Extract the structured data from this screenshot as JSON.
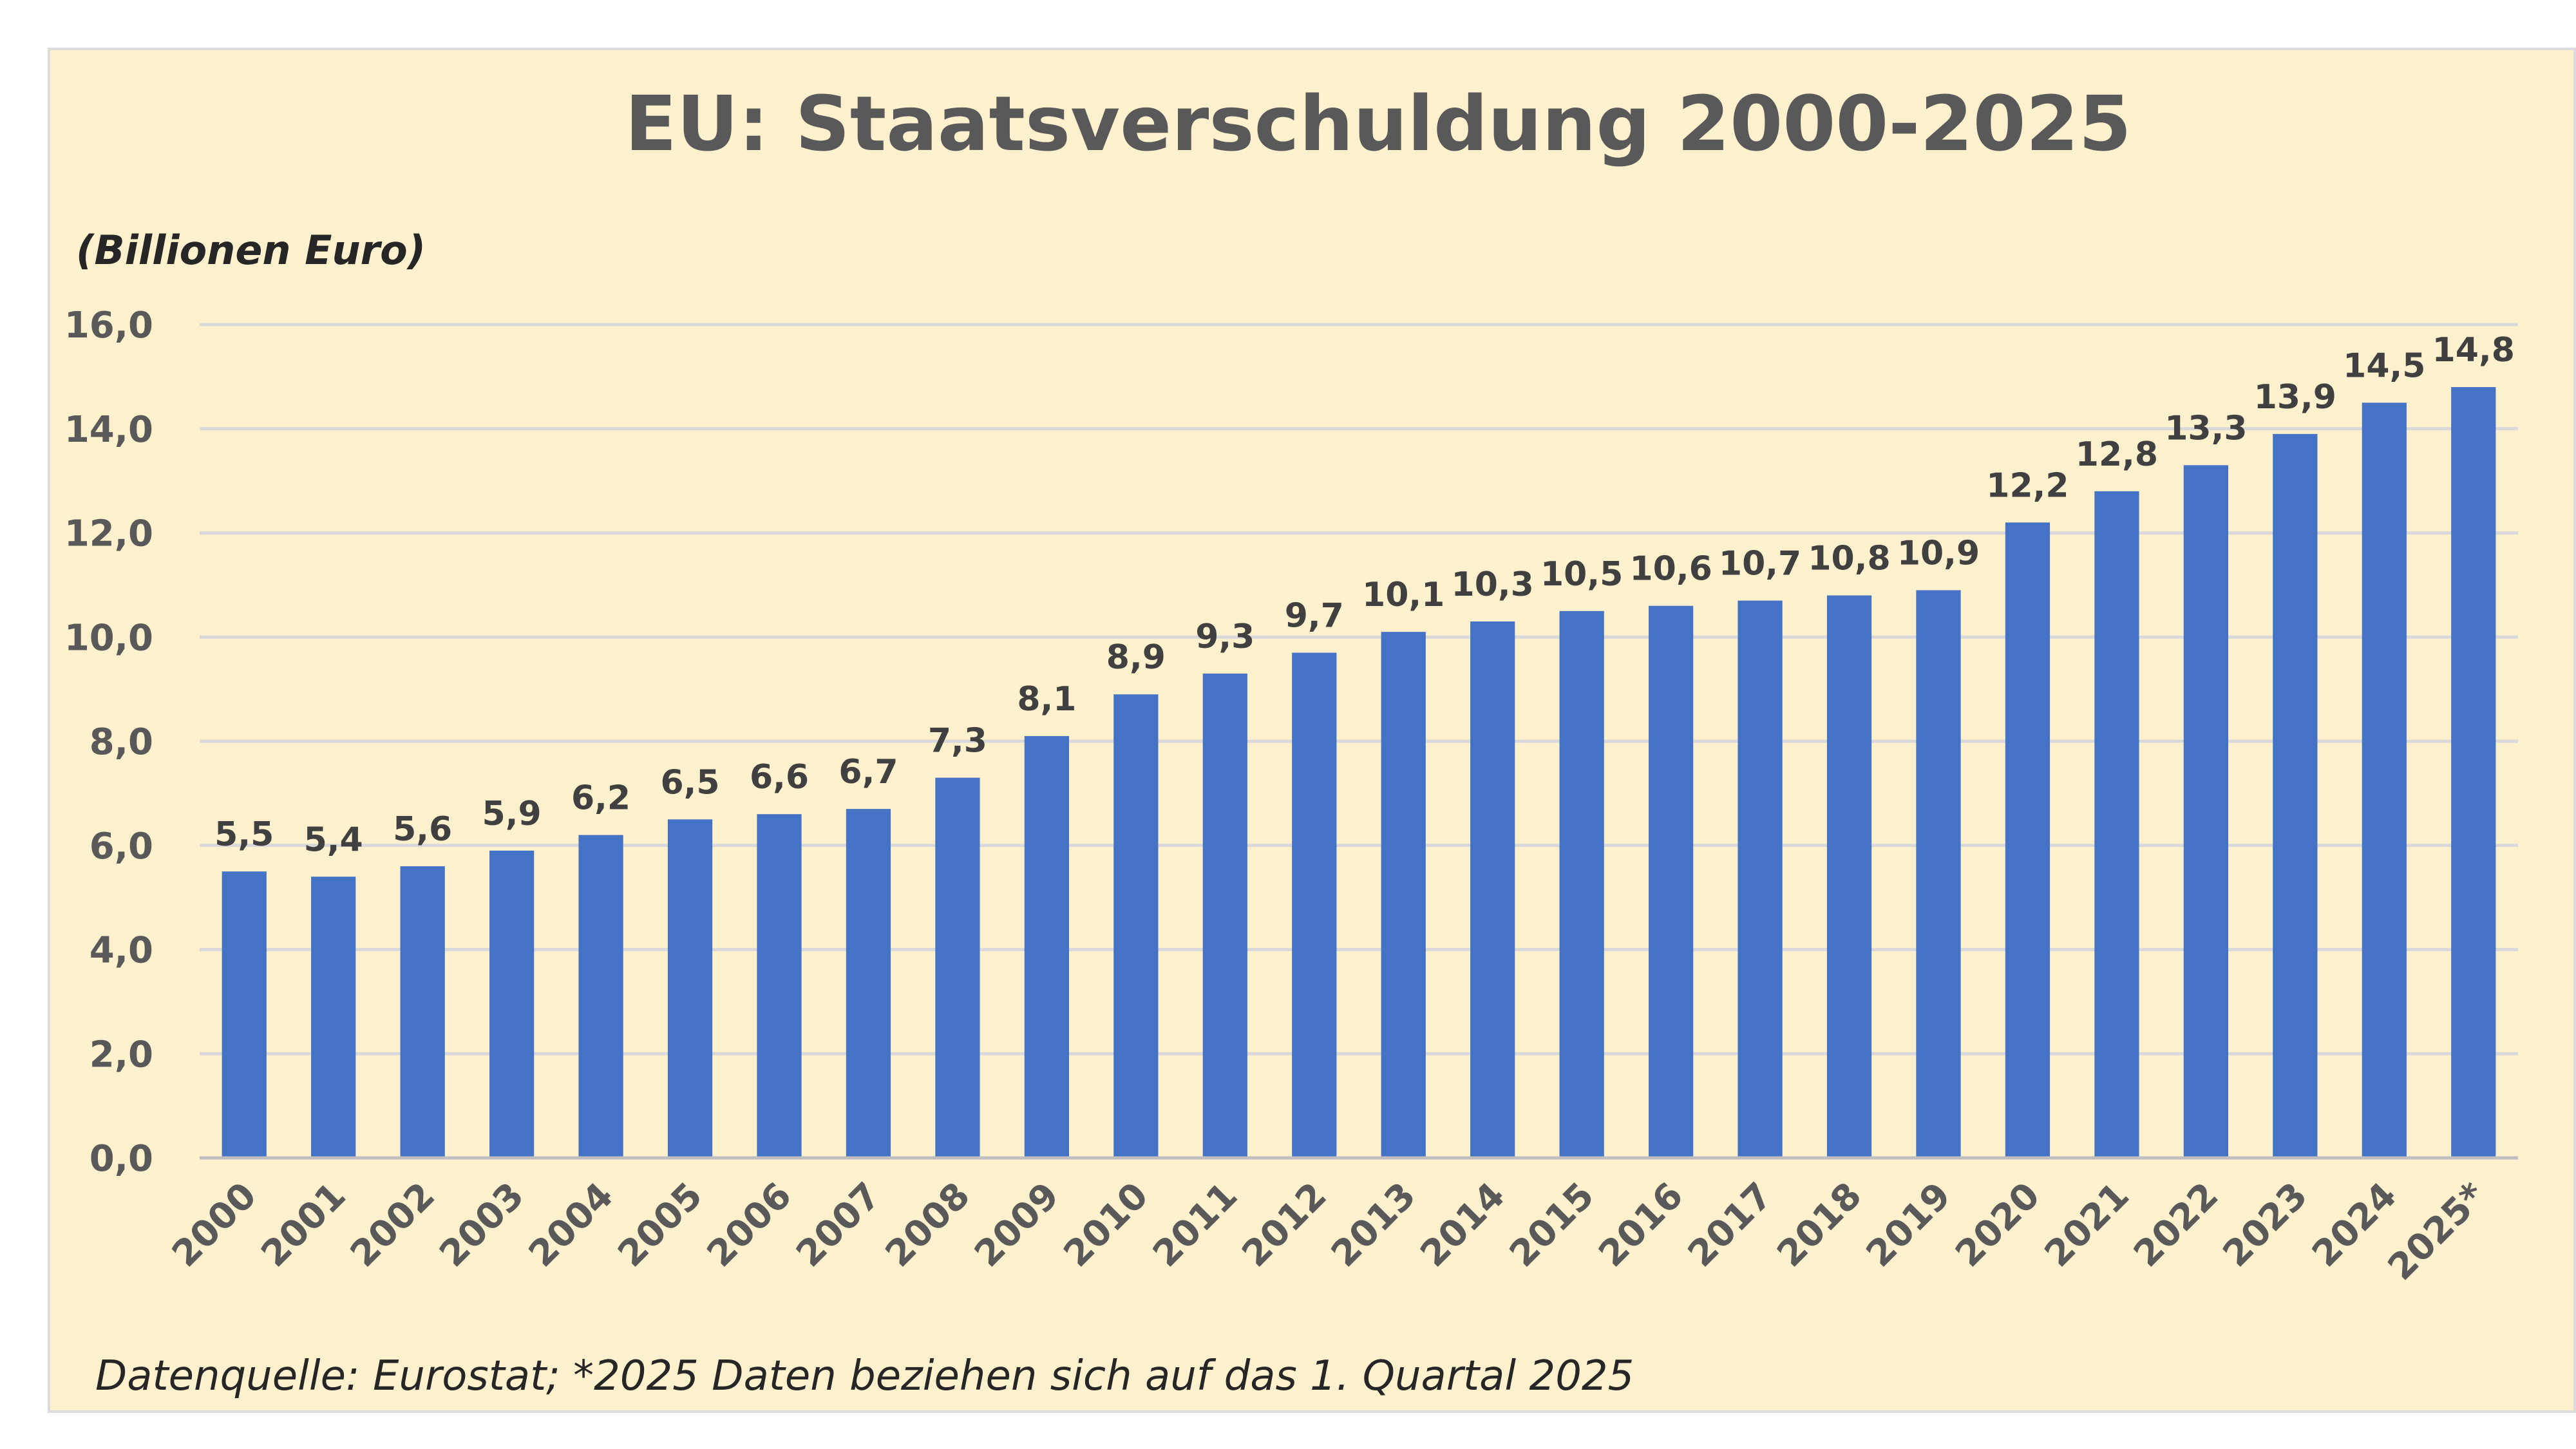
{
  "chart_data": {
    "type": "bar",
    "title": "EU: Staatsverschuldung 2000-2025",
    "ylabel": "(Billionen Euro)",
    "xlabel": "",
    "ylim": [
      0,
      16
    ],
    "yticks": [
      "0,0",
      "2,0",
      "4,0",
      "6,0",
      "8,0",
      "10,0",
      "12,0",
      "14,0",
      "16,0"
    ],
    "grid": true,
    "bar_color": "#4472c4",
    "categories": [
      "2000",
      "2001",
      "2002",
      "2003",
      "2004",
      "2005",
      "2006",
      "2007",
      "2008",
      "2009",
      "2010",
      "2011",
      "2012",
      "2013",
      "2014",
      "2015",
      "2016",
      "2017",
      "2018",
      "2019",
      "2020",
      "2021",
      "2022",
      "2023",
      "2024",
      "2025*"
    ],
    "values": [
      5.5,
      5.4,
      5.6,
      5.9,
      6.2,
      6.5,
      6.6,
      6.7,
      7.3,
      8.1,
      8.9,
      9.3,
      9.7,
      10.1,
      10.3,
      10.5,
      10.6,
      10.7,
      10.8,
      10.9,
      12.2,
      12.8,
      13.3,
      13.9,
      14.5,
      14.8
    ],
    "data_labels": [
      "5,5",
      "5,4",
      "5,6",
      "5,9",
      "6,2",
      "6,5",
      "6,6",
      "6,7",
      "7,3",
      "8,1",
      "8,9",
      "9,3",
      "9,7",
      "10,1",
      "10,3",
      "10,5",
      "10,6",
      "10,7",
      "10,8",
      "10,9",
      "12,2",
      "12,8",
      "13,3",
      "13,9",
      "14,5",
      "14,8"
    ],
    "footnote": "Datenquelle: Eurostat; *2025 Daten beziehen sich auf das 1. Quartal 2025"
  }
}
